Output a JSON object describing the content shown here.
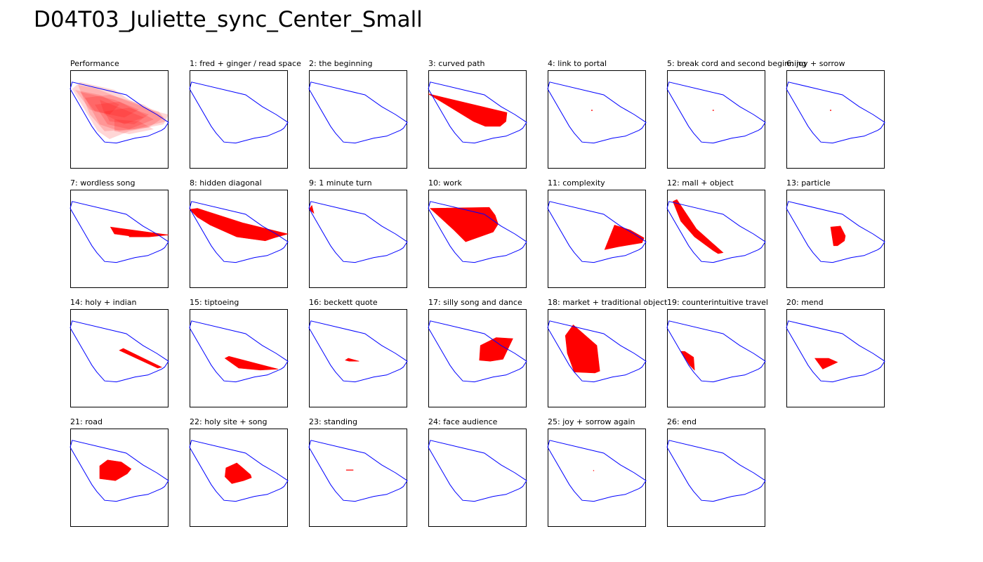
{
  "title": "D04T03_Juliette_sync_Center_Small",
  "colors": {
    "boundary": "#0000ff",
    "fill": "#ff0000",
    "frame": "#000000"
  },
  "chart_data": {
    "type": "area",
    "boundary": [
      [
        0.0,
        0.19
      ],
      [
        0.02,
        0.12
      ],
      [
        0.57,
        0.25
      ],
      [
        0.74,
        0.37
      ],
      [
        0.88,
        0.45
      ],
      [
        1.0,
        0.53
      ],
      [
        0.96,
        0.59
      ],
      [
        0.93,
        0.61
      ],
      [
        0.79,
        0.67
      ],
      [
        0.66,
        0.69
      ],
      [
        0.47,
        0.74
      ],
      [
        0.35,
        0.73
      ],
      [
        0.27,
        0.64
      ],
      [
        0.22,
        0.57
      ],
      [
        0.0,
        0.19
      ]
    ],
    "panels": [
      {
        "label": "Performance",
        "overlay": [
          [
            [
              0.02,
              0.19
            ],
            [
              0.1,
              0.12
            ],
            [
              0.45,
              0.2
            ],
            [
              0.6,
              0.3
            ],
            [
              0.8,
              0.4
            ],
            [
              1.0,
              0.45
            ],
            [
              0.95,
              0.55
            ],
            [
              0.6,
              0.62
            ],
            [
              0.4,
              0.7
            ],
            [
              0.28,
              0.62
            ]
          ],
          [
            [
              0.08,
              0.15
            ],
            [
              0.25,
              0.18
            ],
            [
              0.6,
              0.32
            ],
            [
              0.9,
              0.42
            ],
            [
              0.98,
              0.52
            ],
            [
              0.65,
              0.6
            ],
            [
              0.35,
              0.62
            ],
            [
              0.2,
              0.45
            ]
          ],
          [
            [
              0.15,
              0.28
            ],
            [
              0.4,
              0.25
            ],
            [
              0.75,
              0.35
            ],
            [
              0.95,
              0.48
            ],
            [
              0.8,
              0.58
            ],
            [
              0.5,
              0.62
            ],
            [
              0.3,
              0.55
            ]
          ],
          [
            [
              0.25,
              0.35
            ],
            [
              0.5,
              0.32
            ],
            [
              0.7,
              0.42
            ],
            [
              0.85,
              0.5
            ],
            [
              0.6,
              0.6
            ],
            [
              0.38,
              0.55
            ]
          ],
          [
            [
              0.3,
              0.3
            ],
            [
              0.55,
              0.4
            ],
            [
              0.75,
              0.48
            ],
            [
              0.55,
              0.55
            ],
            [
              0.35,
              0.45
            ]
          ],
          [
            [
              0.35,
              0.42
            ],
            [
              0.6,
              0.38
            ],
            [
              0.8,
              0.45
            ],
            [
              0.65,
              0.55
            ],
            [
              0.4,
              0.52
            ]
          ],
          [
            [
              0.05,
              0.2
            ],
            [
              0.3,
              0.25
            ],
            [
              0.5,
              0.35
            ],
            [
              0.4,
              0.45
            ],
            [
              0.2,
              0.4
            ]
          ],
          [
            [
              0.45,
              0.5
            ],
            [
              0.7,
              0.52
            ],
            [
              0.85,
              0.6
            ],
            [
              0.6,
              0.65
            ],
            [
              0.45,
              0.62
            ]
          ],
          [
            [
              0.1,
              0.22
            ],
            [
              0.45,
              0.3
            ],
            [
              0.7,
              0.4
            ],
            [
              0.55,
              0.48
            ],
            [
              0.25,
              0.42
            ]
          ]
        ]
      },
      {
        "label": "1: fred + ginger / read space",
        "fill": []
      },
      {
        "label": "2: the beginning",
        "fill": []
      },
      {
        "label": "3: curved path",
        "fill": [
          [
            0.0,
            0.24
          ],
          [
            0.8,
            0.43
          ],
          [
            0.79,
            0.52
          ],
          [
            0.73,
            0.57
          ],
          [
            0.58,
            0.57
          ],
          [
            0.46,
            0.52
          ]
        ]
      },
      {
        "label": "4: link to portal",
        "fill": [
          [
            0.445,
            0.405
          ],
          [
            0.455,
            0.405
          ],
          [
            0.455,
            0.41
          ],
          [
            0.445,
            0.41
          ]
        ]
      },
      {
        "label": "5: break cord and second beginning",
        "fill": [
          [
            0.465,
            0.405
          ],
          [
            0.475,
            0.405
          ],
          [
            0.475,
            0.41
          ],
          [
            0.465,
            0.41
          ]
        ]
      },
      {
        "label": "6: joy + sorrow",
        "fill": [
          [
            0.445,
            0.405
          ],
          [
            0.455,
            0.405
          ],
          [
            0.455,
            0.41
          ],
          [
            0.445,
            0.41
          ]
        ]
      },
      {
        "label": "7: wordless song",
        "fill": [
          [
            0.41,
            0.38
          ],
          [
            1.0,
            0.46
          ],
          [
            0.8,
            0.48
          ],
          [
            0.6,
            0.48
          ],
          [
            0.6,
            0.47
          ],
          [
            0.45,
            0.45
          ]
        ]
      },
      {
        "label": "8: hidden diagonal",
        "fill": [
          [
            0.0,
            0.2
          ],
          [
            0.08,
            0.19
          ],
          [
            0.55,
            0.34
          ],
          [
            1.0,
            0.45
          ],
          [
            0.86,
            0.49
          ],
          [
            0.77,
            0.52
          ],
          [
            0.62,
            0.5
          ],
          [
            0.48,
            0.48
          ],
          [
            0.21,
            0.36
          ],
          [
            0.08,
            0.28
          ]
        ]
      },
      {
        "label": "9: 1 minute turn",
        "fill": [
          [
            0.0,
            0.2
          ],
          [
            0.03,
            0.16
          ],
          [
            0.05,
            0.24
          ]
        ]
      },
      {
        "label": "10: work",
        "fill": [
          [
            0.02,
            0.19
          ],
          [
            0.62,
            0.18
          ],
          [
            0.68,
            0.26
          ],
          [
            0.71,
            0.35
          ],
          [
            0.66,
            0.43
          ],
          [
            0.38,
            0.53
          ],
          [
            0.26,
            0.41
          ]
        ]
      },
      {
        "label": "11: complexity",
        "fill": [
          [
            0.58,
            0.61
          ],
          [
            0.68,
            0.36
          ],
          [
            0.84,
            0.41
          ],
          [
            0.98,
            0.49
          ],
          [
            0.96,
            0.54
          ],
          [
            0.72,
            0.58
          ]
        ]
      },
      {
        "label": "12: mall + object",
        "fill": [
          [
            0.06,
            0.12
          ],
          [
            0.1,
            0.1
          ],
          [
            0.3,
            0.4
          ],
          [
            0.57,
            0.64
          ],
          [
            0.52,
            0.65
          ],
          [
            0.47,
            0.62
          ],
          [
            0.28,
            0.48
          ],
          [
            0.14,
            0.32
          ]
        ]
      },
      {
        "label": "13: particle",
        "fill": [
          [
            0.45,
            0.38
          ],
          [
            0.55,
            0.37
          ],
          [
            0.6,
            0.47
          ],
          [
            0.59,
            0.52
          ],
          [
            0.52,
            0.57
          ],
          [
            0.48,
            0.57
          ]
        ]
      },
      {
        "label": "14: holy + indian",
        "fill": [
          [
            0.5,
            0.42
          ],
          [
            0.54,
            0.4
          ],
          [
            0.93,
            0.59
          ],
          [
            0.89,
            0.6
          ]
        ]
      },
      {
        "label": "15: tiptoeing",
        "fill": [
          [
            0.36,
            0.5
          ],
          [
            0.4,
            0.48
          ],
          [
            0.9,
            0.61
          ],
          [
            0.72,
            0.62
          ],
          [
            0.5,
            0.6
          ]
        ]
      },
      {
        "label": "16: beckett quote",
        "fill": [
          [
            0.37,
            0.52
          ],
          [
            0.4,
            0.5
          ],
          [
            0.51,
            0.53
          ],
          [
            0.41,
            0.53
          ]
        ]
      },
      {
        "label": "17: silly song and dance",
        "fill": [
          [
            0.53,
            0.37
          ],
          [
            0.69,
            0.29
          ],
          [
            0.86,
            0.3
          ],
          [
            0.76,
            0.51
          ],
          [
            0.63,
            0.53
          ],
          [
            0.52,
            0.52
          ]
        ]
      },
      {
        "label": "18: market + traditional object",
        "fill": [
          [
            0.18,
            0.27
          ],
          [
            0.26,
            0.16
          ],
          [
            0.5,
            0.37
          ],
          [
            0.53,
            0.63
          ],
          [
            0.48,
            0.65
          ],
          [
            0.27,
            0.64
          ],
          [
            0.2,
            0.45
          ]
        ]
      },
      {
        "label": "19: counterintuitive travel",
        "fill": [
          [
            0.14,
            0.43
          ],
          [
            0.18,
            0.43
          ],
          [
            0.27,
            0.49
          ],
          [
            0.28,
            0.62
          ],
          [
            0.23,
            0.57
          ]
        ]
      },
      {
        "label": "20: mend",
        "fill": [
          [
            0.29,
            0.5
          ],
          [
            0.43,
            0.5
          ],
          [
            0.52,
            0.54
          ],
          [
            0.37,
            0.61
          ]
        ]
      },
      {
        "label": "21: road",
        "fill": [
          [
            0.3,
            0.38
          ],
          [
            0.38,
            0.32
          ],
          [
            0.52,
            0.34
          ],
          [
            0.62,
            0.41
          ],
          [
            0.58,
            0.46
          ],
          [
            0.46,
            0.53
          ],
          [
            0.3,
            0.51
          ],
          [
            0.3,
            0.49
          ]
        ]
      },
      {
        "label": "22: holy site + song",
        "fill": [
          [
            0.37,
            0.4
          ],
          [
            0.48,
            0.35
          ],
          [
            0.54,
            0.4
          ],
          [
            0.62,
            0.47
          ],
          [
            0.63,
            0.5
          ],
          [
            0.55,
            0.53
          ],
          [
            0.43,
            0.56
          ],
          [
            0.36,
            0.49
          ]
        ]
      },
      {
        "label": "23: standing",
        "fill": [
          [
            0.38,
            0.42
          ],
          [
            0.45,
            0.42
          ],
          [
            0.45,
            0.425
          ],
          [
            0.38,
            0.425
          ]
        ]
      },
      {
        "label": "24: face audience",
        "fill": []
      },
      {
        "label": "25: joy + sorrow again",
        "fill": [
          [
            0.465,
            0.425
          ],
          [
            0.47,
            0.425
          ],
          [
            0.47,
            0.43
          ],
          [
            0.465,
            0.43
          ]
        ]
      },
      {
        "label": "26: end",
        "fill": []
      }
    ]
  }
}
